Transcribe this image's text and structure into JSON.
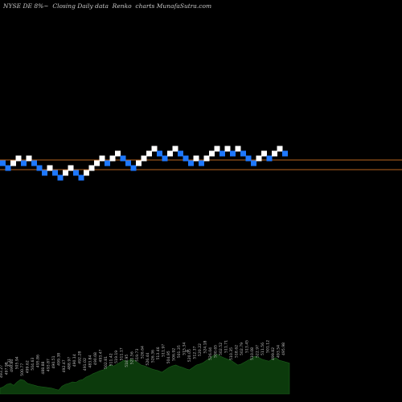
{
  "header": {
    "title": "NYSE DE 8%~  Closing Daily data  Renko  charts MunafaSutra.com"
  },
  "chart_data": {
    "type": "renko",
    "title": "NYSE DE 8%~  Closing Daily data  Renko  charts MunafaSutra.com",
    "colors": {
      "background": "#000000",
      "up_brick": "#ffffff",
      "down_brick": "#1e78ff",
      "reference_line": "#b8641e",
      "volume_area": "#0c3a0c"
    },
    "reference_levels": [
      7,
      9
    ],
    "bricks": [
      {
        "level": 8,
        "dir": "down"
      },
      {
        "level": 7,
        "dir": "down"
      },
      {
        "level": 8,
        "dir": "up"
      },
      {
        "level": 9,
        "dir": "up"
      },
      {
        "level": 8,
        "dir": "down"
      },
      {
        "level": 9,
        "dir": "up"
      },
      {
        "level": 8,
        "dir": "down"
      },
      {
        "level": 7,
        "dir": "down"
      },
      {
        "level": 6,
        "dir": "down"
      },
      {
        "level": 7,
        "dir": "up"
      },
      {
        "level": 6,
        "dir": "down"
      },
      {
        "level": 5,
        "dir": "down"
      },
      {
        "level": 6,
        "dir": "up"
      },
      {
        "level": 7,
        "dir": "up"
      },
      {
        "level": 6,
        "dir": "down"
      },
      {
        "level": 5,
        "dir": "down"
      },
      {
        "level": 6,
        "dir": "up"
      },
      {
        "level": 7,
        "dir": "up"
      },
      {
        "level": 8,
        "dir": "up"
      },
      {
        "level": 9,
        "dir": "up"
      },
      {
        "level": 8,
        "dir": "down"
      },
      {
        "level": 9,
        "dir": "up"
      },
      {
        "level": 10,
        "dir": "up"
      },
      {
        "level": 9,
        "dir": "down"
      },
      {
        "level": 8,
        "dir": "down"
      },
      {
        "level": 7,
        "dir": "down"
      },
      {
        "level": 8,
        "dir": "up"
      },
      {
        "level": 9,
        "dir": "up"
      },
      {
        "level": 10,
        "dir": "up"
      },
      {
        "level": 11,
        "dir": "up"
      },
      {
        "level": 10,
        "dir": "down"
      },
      {
        "level": 9,
        "dir": "down"
      },
      {
        "level": 10,
        "dir": "up"
      },
      {
        "level": 11,
        "dir": "up"
      },
      {
        "level": 10,
        "dir": "down"
      },
      {
        "level": 9,
        "dir": "down"
      },
      {
        "level": 8,
        "dir": "down"
      },
      {
        "level": 9,
        "dir": "up"
      },
      {
        "level": 8,
        "dir": "down"
      },
      {
        "level": 9,
        "dir": "up"
      },
      {
        "level": 10,
        "dir": "up"
      },
      {
        "level": 11,
        "dir": "up"
      },
      {
        "level": 10,
        "dir": "down"
      },
      {
        "level": 11,
        "dir": "up"
      },
      {
        "level": 10,
        "dir": "down"
      },
      {
        "level": 11,
        "dir": "up"
      },
      {
        "level": 10,
        "dir": "down"
      },
      {
        "level": 9,
        "dir": "down"
      },
      {
        "level": 8,
        "dir": "down"
      },
      {
        "level": 9,
        "dir": "up"
      },
      {
        "level": 10,
        "dir": "up"
      },
      {
        "level": 9,
        "dir": "down"
      },
      {
        "level": 10,
        "dir": "up"
      },
      {
        "level": 11,
        "dir": "up"
      },
      {
        "level": 10,
        "dir": "down"
      }
    ],
    "volume": [
      0.12,
      0.15,
      0.2,
      0.22,
      0.18,
      0.25,
      0.3,
      0.28,
      0.22,
      0.2,
      0.18,
      0.16,
      0.15,
      0.14,
      0.13,
      0.12,
      0.1,
      0.08,
      0.16,
      0.2,
      0.22,
      0.25,
      0.24,
      0.28,
      0.3,
      0.35,
      0.38,
      0.42,
      0.45,
      0.48,
      0.5,
      0.55,
      0.6,
      0.58,
      0.62,
      0.66,
      0.7,
      0.68,
      0.72,
      0.7,
      0.65,
      0.6,
      0.58,
      0.55,
      0.52,
      0.5,
      0.48,
      0.45,
      0.5,
      0.55,
      0.58,
      0.6,
      0.57,
      0.55,
      0.52,
      0.5,
      0.55,
      0.6,
      0.62,
      0.65,
      0.7,
      0.75,
      0.8,
      0.82,
      0.78,
      0.75,
      0.72,
      0.7,
      0.65,
      0.6,
      0.62,
      0.66,
      0.7,
      0.74,
      0.78,
      0.76,
      0.72,
      0.7,
      0.68,
      0.72,
      0.75,
      0.7,
      0.68,
      0.66,
      0.64
    ],
    "price_labels": [
      "493.27",
      "497.98",
      "499.86",
      "505.94",
      "500.77",
      "499.62",
      "504.63",
      "495.86",
      "488.88",
      "493.87",
      "490.51",
      "499.38",
      "492.47",
      "488.97",
      "490.14",
      "492.28",
      "491.02",
      "483.84",
      "490.68",
      "493.47",
      "502.81",
      "511.42",
      "519.19",
      "511.17",
      "518.95",
      "521.56",
      "519.73",
      "526.64",
      "526.44",
      "526.36",
      "513.46",
      "511.97",
      "504.95",
      "506.92",
      "501.35",
      "515.34",
      "520.05",
      "512.37",
      "520.22",
      "524.18",
      "526.04",
      "500.65",
      "502.52",
      "511.71",
      "510.35",
      "518.62",
      "502.79",
      "513.45",
      "510.08",
      "522.97",
      "511.56",
      "501.12",
      "499.82",
      "493.54",
      "495.98"
    ],
    "overlay_labels": [
      "4.31",
      "4"
    ]
  }
}
